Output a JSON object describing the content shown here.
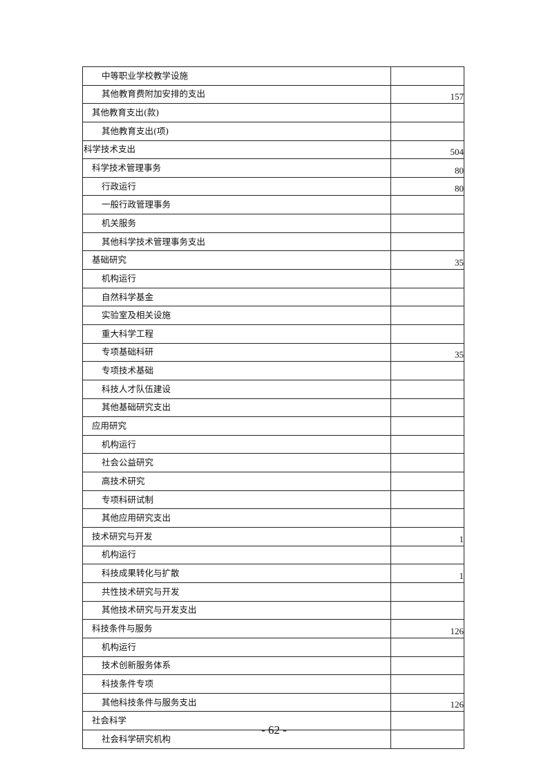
{
  "rows": [
    {
      "label": "中等职业学校教学设施",
      "level": 2,
      "value": ""
    },
    {
      "label": "其他教育费附加安排的支出",
      "level": 2,
      "value": "157"
    },
    {
      "label": "其他教育支出(款)",
      "level": 1,
      "value": ""
    },
    {
      "label": "其他教育支出(项)",
      "level": 2,
      "value": ""
    },
    {
      "label": "科学技术支出",
      "level": 0,
      "value": "504"
    },
    {
      "label": "科学技术管理事务",
      "level": 1,
      "value": "80"
    },
    {
      "label": "行政运行",
      "level": 2,
      "value": "80"
    },
    {
      "label": "一般行政管理事务",
      "level": 2,
      "value": ""
    },
    {
      "label": "机关服务",
      "level": 2,
      "value": ""
    },
    {
      "label": "其他科学技术管理事务支出",
      "level": 2,
      "value": ""
    },
    {
      "label": "基础研究",
      "level": 1,
      "value": "35"
    },
    {
      "label": "机构运行",
      "level": 2,
      "value": ""
    },
    {
      "label": "自然科学基金",
      "level": 2,
      "value": ""
    },
    {
      "label": "实验室及相关设施",
      "level": 2,
      "value": ""
    },
    {
      "label": "重大科学工程",
      "level": 2,
      "value": ""
    },
    {
      "label": "专项基础科研",
      "level": 2,
      "value": "35"
    },
    {
      "label": "专项技术基础",
      "level": 2,
      "value": ""
    },
    {
      "label": "科技人才队伍建设",
      "level": 2,
      "value": ""
    },
    {
      "label": "其他基础研究支出",
      "level": 2,
      "value": ""
    },
    {
      "label": "应用研究",
      "level": 1,
      "value": ""
    },
    {
      "label": "机构运行",
      "level": 2,
      "value": ""
    },
    {
      "label": "社会公益研究",
      "level": 2,
      "value": ""
    },
    {
      "label": "高技术研究",
      "level": 2,
      "value": ""
    },
    {
      "label": "专项科研试制",
      "level": 2,
      "value": ""
    },
    {
      "label": "其他应用研究支出",
      "level": 2,
      "value": ""
    },
    {
      "label": "技术研究与开发",
      "level": 1,
      "value": "1"
    },
    {
      "label": "机构运行",
      "level": 2,
      "value": ""
    },
    {
      "label": "科技成果转化与扩散",
      "level": 2,
      "value": "1"
    },
    {
      "label": "共性技术研究与开发",
      "level": 2,
      "value": ""
    },
    {
      "label": "其他技术研究与开发支出",
      "level": 2,
      "value": ""
    },
    {
      "label": "科技条件与服务",
      "level": 1,
      "value": "126"
    },
    {
      "label": "机构运行",
      "level": 2,
      "value": ""
    },
    {
      "label": "技术创新服务体系",
      "level": 2,
      "value": ""
    },
    {
      "label": "科技条件专项",
      "level": 2,
      "value": ""
    },
    {
      "label": "其他科技条件与服务支出",
      "level": 2,
      "value": "126"
    },
    {
      "label": "社会科学",
      "level": 1,
      "value": ""
    },
    {
      "label": "社会科学研究机构",
      "level": 2,
      "value": ""
    }
  ],
  "page_number": "- 62 -"
}
